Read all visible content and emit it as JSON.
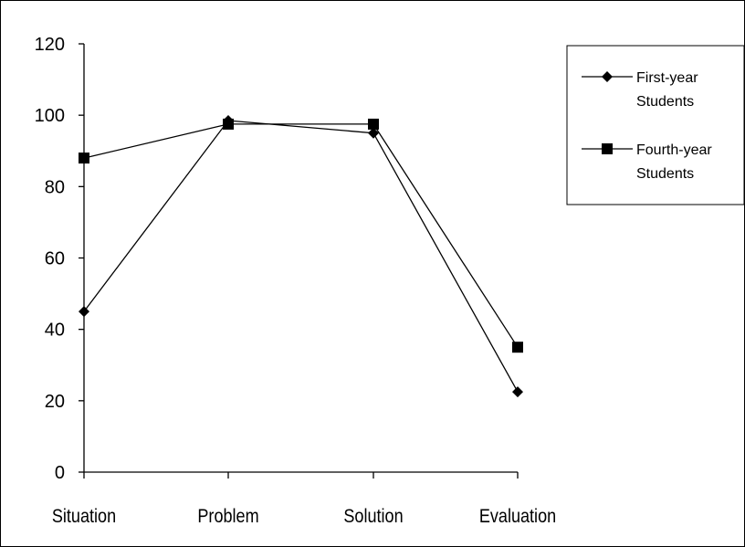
{
  "chart_data": {
    "type": "line",
    "title": "",
    "xlabel": "",
    "ylabel": "",
    "categories": [
      "Situation",
      "Problem",
      "Solution",
      "Evaluation"
    ],
    "ylim": [
      0,
      120
    ],
    "yticks": [
      "0",
      "20",
      "40",
      "60",
      "80",
      "100",
      "120"
    ],
    "grid": false,
    "legend_position": "top-right",
    "series": [
      {
        "name": "First-year Students",
        "name_lines": [
          "First-year",
          "Students"
        ],
        "marker": "diamond",
        "color": "#000000",
        "values": [
          45,
          98.5,
          95,
          22.5
        ]
      },
      {
        "name": "Fourth-year Students",
        "name_lines": [
          "Fourth-year",
          "Students"
        ],
        "marker": "square",
        "color": "#000000",
        "values": [
          88,
          97.5,
          97.5,
          35
        ]
      }
    ]
  }
}
